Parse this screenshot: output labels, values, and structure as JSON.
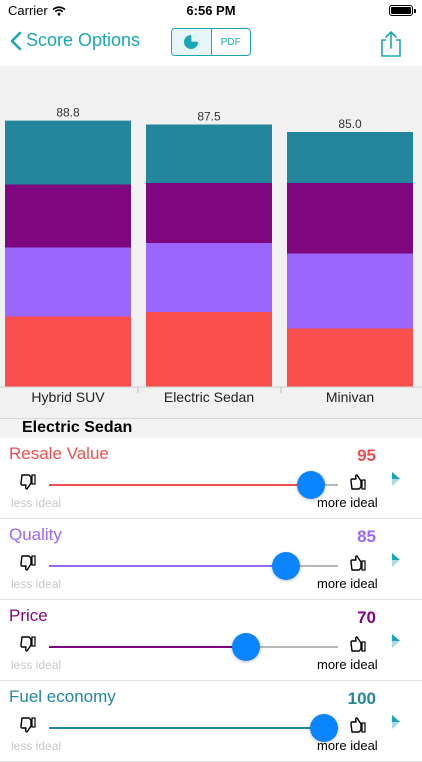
{
  "status_bar": {
    "carrier": "Carrier",
    "time": "6:56 PM"
  },
  "nav": {
    "back_label": "Score Options",
    "segment_pdf": "PDF",
    "icons": [
      "chevron-left-icon",
      "pie-chart-icon",
      "share-icon"
    ]
  },
  "colors": {
    "teal": "#24869c",
    "purple": "#7e067e",
    "violet": "#9b66fb",
    "red": "#fa4f4f",
    "accent": "#1aa7b5"
  },
  "chart_data": {
    "type": "bar",
    "stacked": true,
    "categories": [
      "Hybrid SUV",
      "Electric Sedan",
      "Minivan"
    ],
    "totals": [
      "88.8",
      "87.5",
      "85.0"
    ],
    "total_values": [
      88.8,
      87.5,
      85.0
    ],
    "ylim": [
      0,
      100
    ],
    "series_colors": [
      "#fa4f4f",
      "#9b66fb",
      "#7e067e",
      "#24869c"
    ],
    "series": [
      {
        "values": [
          23.5,
          25.0,
          19.5
        ]
      },
      {
        "values": [
          23.0,
          23.0,
          25.0
        ]
      },
      {
        "values": [
          21.0,
          20.0,
          23.5
        ]
      },
      {
        "values": [
          21.3,
          19.5,
          17.0
        ]
      }
    ]
  },
  "section": {
    "title": "Electric Sedan"
  },
  "criteria": [
    {
      "label": "Resale Value",
      "value": "95",
      "level": 0.905,
      "color": "#f04f4f",
      "less": "less ideal",
      "more": "more ideal"
    },
    {
      "label": "Quality",
      "value": "85",
      "level": 0.82,
      "color": "#9b66fb",
      "less": "less ideal",
      "more": "more ideal"
    },
    {
      "label": "Price",
      "value": "70",
      "level": 0.68,
      "color": "#7e067e",
      "less": "less ideal",
      "more": "more ideal"
    },
    {
      "label": "Fuel economy",
      "value": "100",
      "level": 0.95,
      "color": "#24869c",
      "less": "less ideal",
      "more": "more ideal"
    }
  ]
}
